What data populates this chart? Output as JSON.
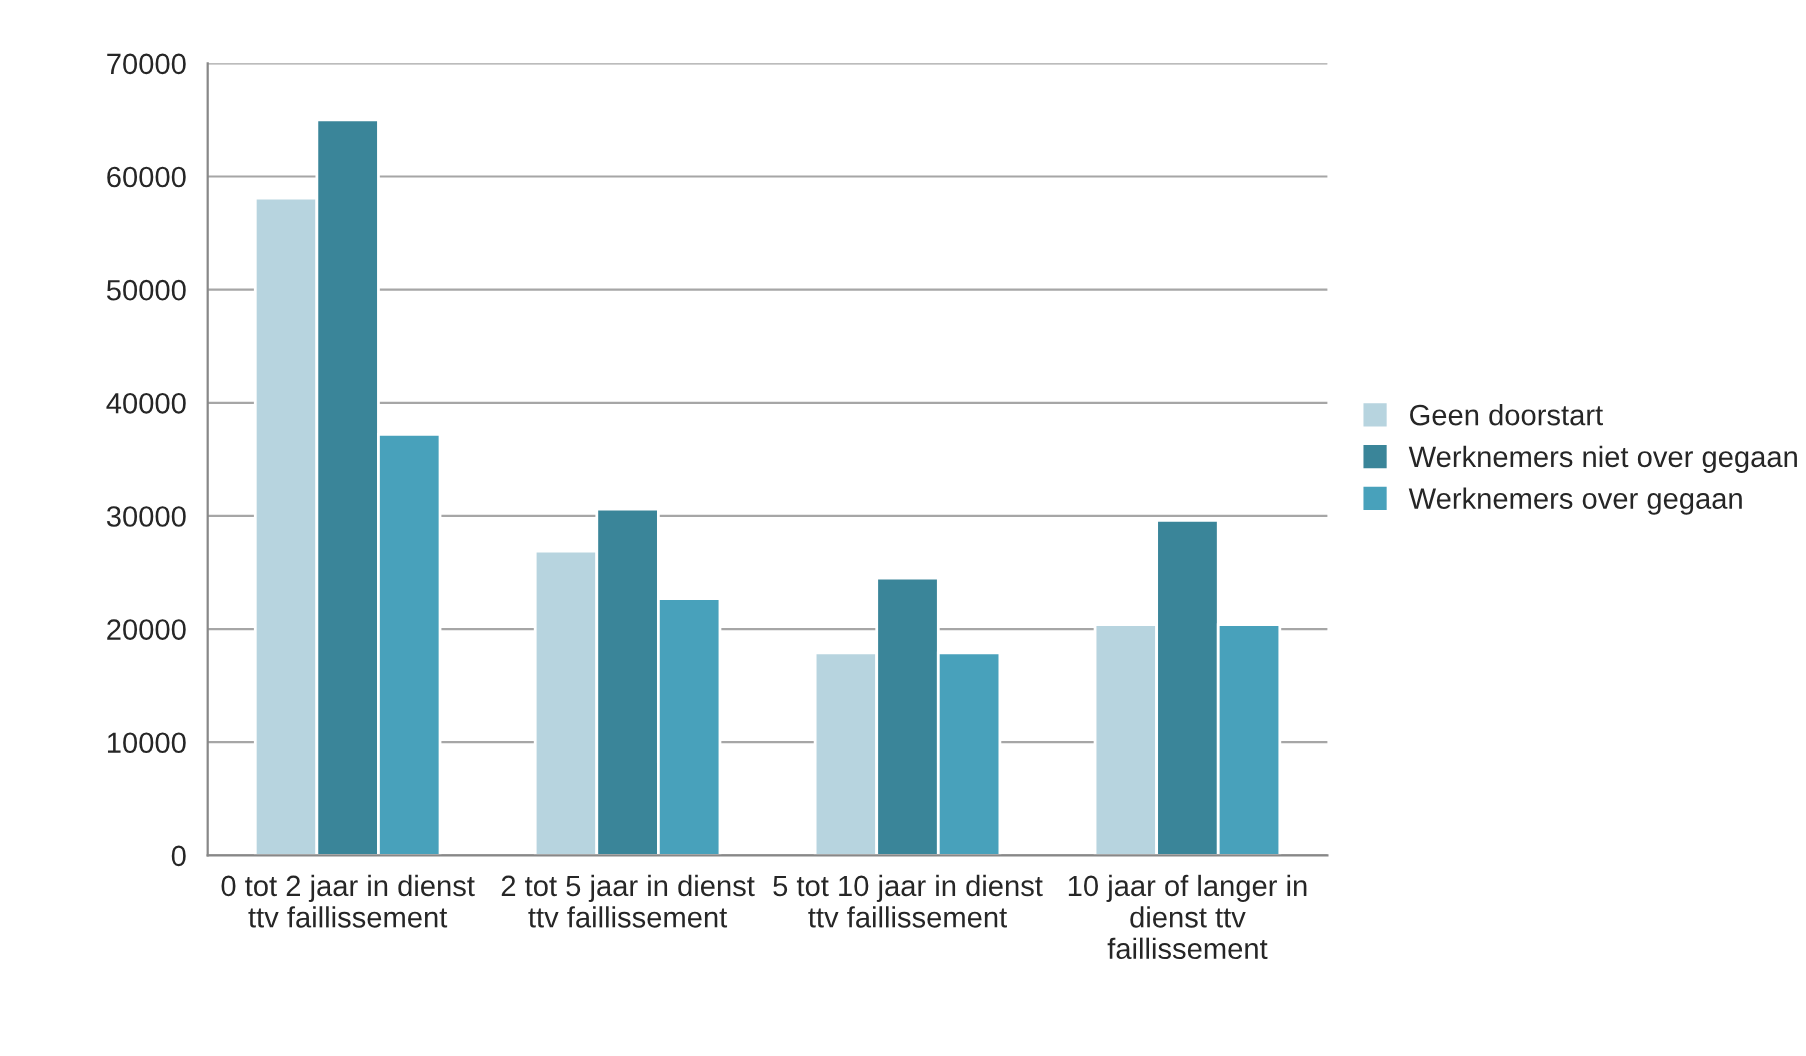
{
  "chart_data": {
    "type": "bar",
    "categories": [
      "0 tot 2 jaar in dienst\nttv faillissement",
      "2 tot 5 jaar in dienst\nttv faillissement",
      "5 tot 10 jaar in dienst\nttv faillissement",
      "10 jaar of langer in\ndienst ttv\nfaillissement"
    ],
    "series": [
      {
        "name": "Geen doorstart",
        "color": "#b7d4df",
        "values": [
          58100,
          26900,
          17900,
          20400
        ]
      },
      {
        "name": "Werknemers niet over gegaan",
        "color": "#3a8599",
        "values": [
          65000,
          30600,
          24500,
          29600
        ]
      },
      {
        "name": "Werknemers over gegaan",
        "color": "#48a1bb",
        "values": [
          37200,
          22700,
          17900,
          20400
        ]
      }
    ],
    "ylim": [
      0,
      70000
    ],
    "yticks": [
      0,
      10000,
      20000,
      30000,
      40000,
      50000,
      60000,
      70000
    ],
    "grid": "y",
    "legend": "right"
  }
}
